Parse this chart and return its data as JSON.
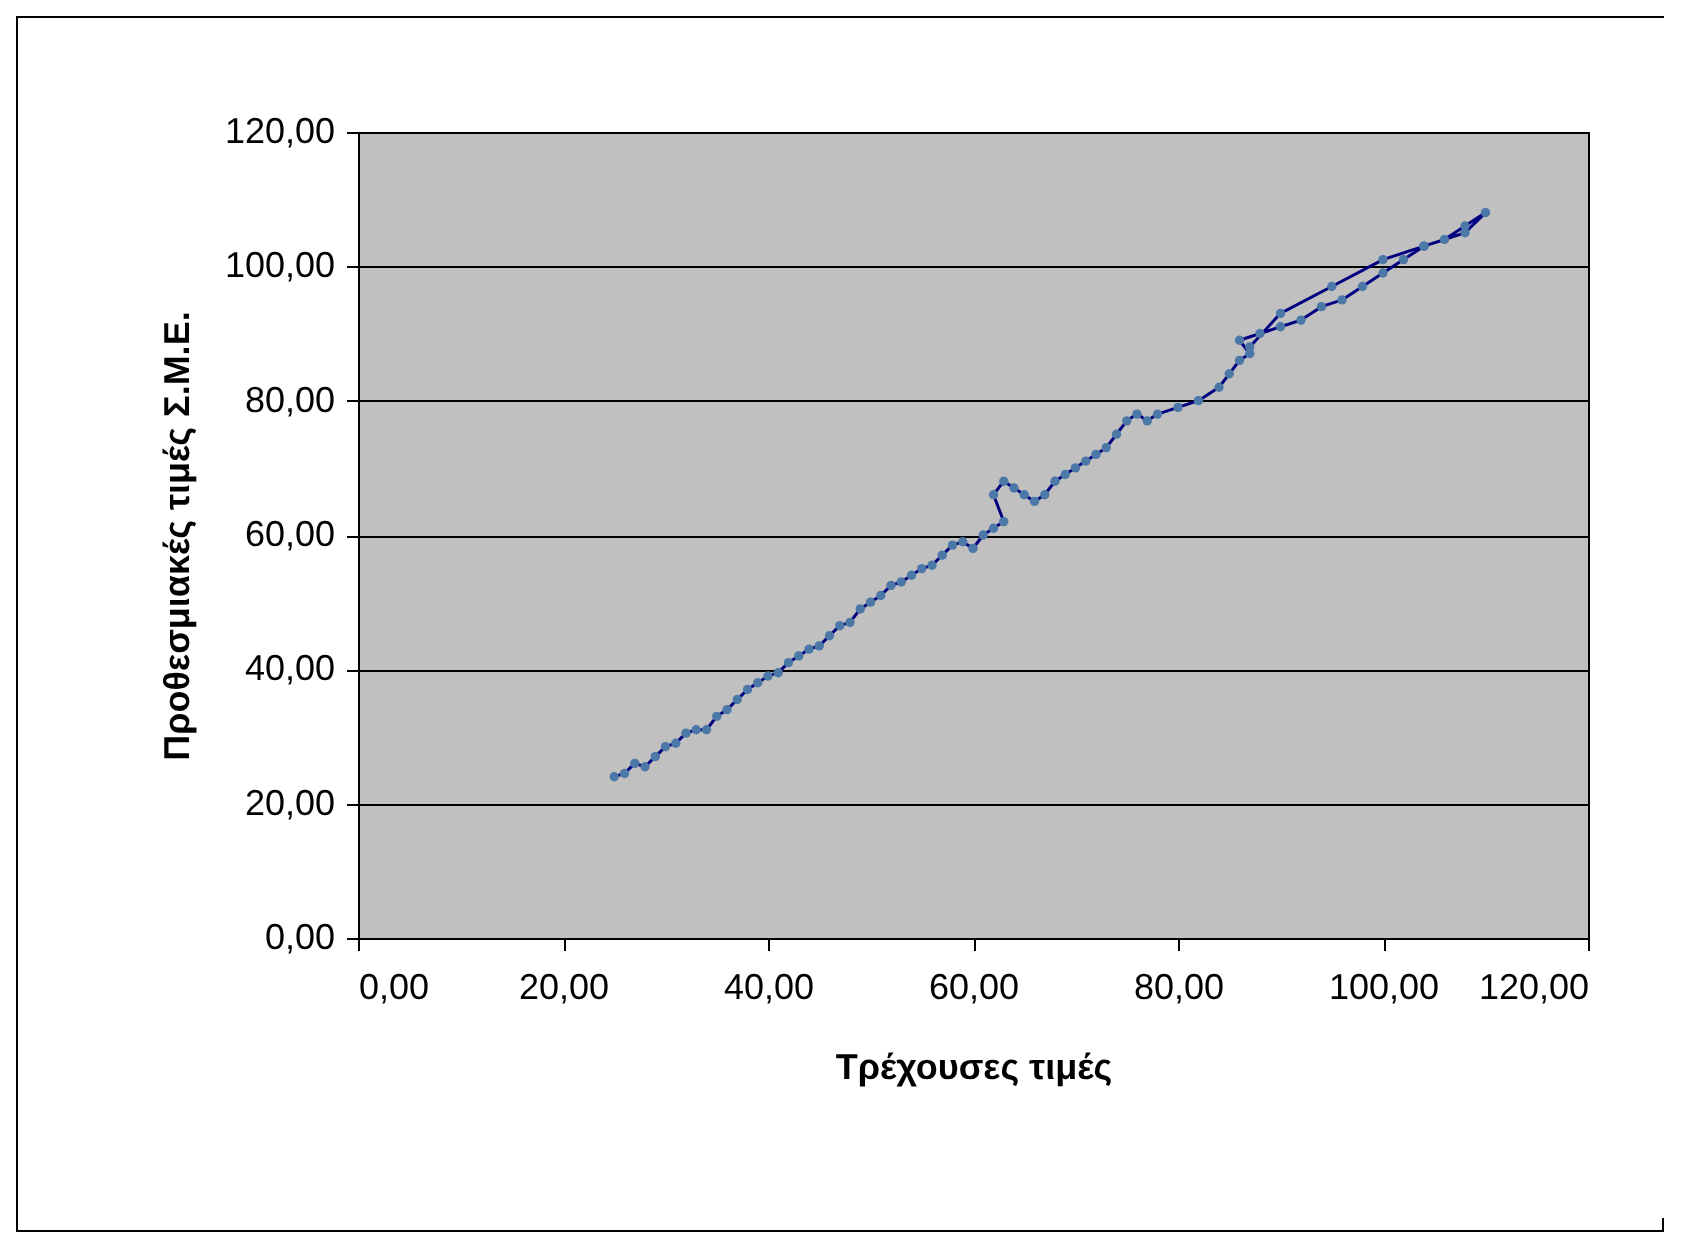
{
  "chart_data": {
    "type": "line",
    "xlabel": "Τρέχουσες τιμές",
    "ylabel": "Προθεσμιακές τιμές Σ.Μ.Ε.",
    "series": [
      {
        "color": "#000080",
        "x": [
          25,
          26,
          27,
          28,
          29,
          30,
          31,
          32,
          33,
          34,
          35,
          36,
          37,
          38,
          39,
          40,
          41,
          42,
          43,
          44,
          45,
          46,
          47,
          48,
          49,
          50,
          51,
          52,
          53,
          54,
          55,
          56,
          57,
          58,
          59,
          60,
          61,
          62,
          63,
          62,
          63,
          64,
          65,
          66,
          67,
          68,
          69,
          70,
          71,
          72,
          73,
          74,
          75,
          76,
          77,
          78,
          80,
          82,
          84,
          85,
          86,
          87,
          86,
          88,
          90,
          92,
          94,
          96,
          98,
          100,
          102,
          104,
          106,
          108,
          110,
          108,
          104,
          100,
          95,
          90,
          87
        ],
        "values": [
          24,
          24.5,
          26,
          25.5,
          27,
          28.5,
          29,
          30.5,
          31,
          31,
          33,
          34,
          35.5,
          37,
          38,
          39,
          39.5,
          41,
          42,
          43,
          43.5,
          45,
          46.5,
          47,
          49,
          50,
          51,
          52.5,
          53,
          54,
          55,
          55.5,
          57,
          58.5,
          59,
          58,
          60,
          61,
          62,
          66,
          68,
          67,
          66,
          65,
          66,
          68,
          69,
          70,
          71,
          72,
          73,
          75,
          77,
          78,
          77,
          78,
          79,
          80,
          82,
          84,
          86,
          87,
          89,
          90,
          91,
          92,
          94,
          95,
          97,
          99,
          101,
          103,
          104,
          106,
          108,
          105,
          103,
          101,
          97,
          93,
          88
        ]
      }
    ],
    "xlim": [
      0,
      120
    ],
    "ylim": [
      0,
      120
    ],
    "xticks": [
      {
        "value": 0,
        "label": "0,00"
      },
      {
        "value": 20,
        "label": "20,00"
      },
      {
        "value": 40,
        "label": "40,00"
      },
      {
        "value": 60,
        "label": "60,00"
      },
      {
        "value": 80,
        "label": "80,00"
      },
      {
        "value": 100,
        "label": "100,00"
      },
      {
        "value": 120,
        "label": "120,00"
      }
    ],
    "yticks": [
      {
        "value": 0,
        "label": "0,00"
      },
      {
        "value": 20,
        "label": "20,00"
      },
      {
        "value": 40,
        "label": "40,00"
      },
      {
        "value": 60,
        "label": "60,00"
      },
      {
        "value": 80,
        "label": "80,00"
      },
      {
        "value": 100,
        "label": "100,00"
      },
      {
        "value": 120,
        "label": "120,00"
      }
    ],
    "grid": "y",
    "marker": "circle"
  }
}
